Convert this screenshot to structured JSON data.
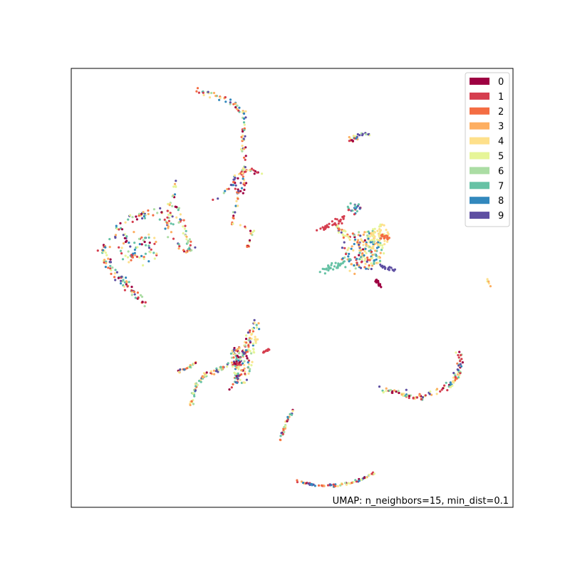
{
  "chart_data": {
    "type": "scatter",
    "title": "",
    "xlabel": "",
    "ylabel": "",
    "grid": false,
    "axes_ticks": false,
    "xlim": [
      0,
      100
    ],
    "ylim": [
      0,
      100
    ],
    "legend": {
      "placement": "top-right",
      "entries": [
        "0",
        "1",
        "2",
        "3",
        "4",
        "5",
        "6",
        "7",
        "8",
        "9"
      ]
    },
    "colors": [
      "#9e0142",
      "#d53e4f",
      "#f46d43",
      "#fdae61",
      "#fee08b",
      "#e6f598",
      "#abdda4",
      "#66c2a5",
      "#3288bd",
      "#5e4fa2"
    ],
    "annotation": "UMAP: n_neighbors=15, min_dist=0.1",
    "clusters": [
      {
        "kind": "path",
        "pts": [
          [
            28,
            95
          ],
          [
            33,
            94
          ],
          [
            37,
            92
          ],
          [
            39,
            90
          ],
          [
            39,
            85
          ],
          [
            39,
            78
          ],
          [
            39,
            72
          ]
        ],
        "n": 90,
        "jitter": 0.6,
        "mix": "all"
      },
      {
        "kind": "path",
        "pts": [
          [
            37,
            75
          ],
          [
            40,
            77
          ],
          [
            43,
            76
          ]
        ],
        "n": 25,
        "jitter": 0.5,
        "mix": "all"
      },
      {
        "kind": "path",
        "pts": [
          [
            32,
            70
          ],
          [
            37,
            74
          ],
          [
            38,
            71
          ],
          [
            36,
            65
          ],
          [
            41,
            63
          ],
          [
            40,
            59
          ]
        ],
        "n": 50,
        "jitter": 0.6,
        "mix": "all"
      },
      {
        "kind": "path",
        "pts": [
          [
            24,
            75
          ],
          [
            22,
            68
          ],
          [
            22,
            62
          ],
          [
            26,
            58
          ],
          [
            27,
            59
          ]
        ],
        "n": 45,
        "jitter": 0.8,
        "mix": "all"
      },
      {
        "kind": "path",
        "pts": [
          [
            7,
            58
          ],
          [
            10,
            53
          ],
          [
            13,
            50
          ],
          [
            16,
            47
          ],
          [
            17,
            46
          ]
        ],
        "n": 70,
        "jitter": 1.0,
        "mix": "all"
      },
      {
        "kind": "path",
        "pts": [
          [
            7,
            58
          ],
          [
            10,
            63
          ],
          [
            14,
            66
          ],
          [
            18,
            67
          ],
          [
            24,
            68
          ],
          [
            26,
            62
          ],
          [
            27,
            59
          ]
        ],
        "n": 90,
        "jitter": 1.0,
        "mix": "all"
      },
      {
        "kind": "blob",
        "c": [
          15,
          59
        ],
        "r": [
          5,
          4
        ],
        "n": 70,
        "mix": "all"
      },
      {
        "kind": "blob",
        "c": [
          64,
          84
        ],
        "r": [
          1.5,
          0.8
        ],
        "n": 18,
        "mix": "all"
      },
      {
        "kind": "path",
        "pts": [
          [
            65,
            85
          ],
          [
            68,
            85
          ]
        ],
        "n": 10,
        "jitter": 0.3,
        "mix": [
          5,
          6,
          9
        ]
      },
      {
        "kind": "path",
        "pts": [
          [
            56,
            63
          ],
          [
            60,
            65
          ],
          [
            62,
            66
          ]
        ],
        "n": 35,
        "jitter": 0.6,
        "mix": [
          1
        ]
      },
      {
        "kind": "path",
        "pts": [
          [
            60,
            64
          ],
          [
            65,
            60
          ],
          [
            68,
            54
          ]
        ],
        "n": 40,
        "jitter": 0.8,
        "mix": [
          4,
          5,
          9,
          2
        ]
      },
      {
        "kind": "path",
        "pts": [
          [
            57,
            54
          ],
          [
            60,
            55
          ],
          [
            62,
            56
          ]
        ],
        "n": 35,
        "jitter": 0.8,
        "mix": [
          7
        ]
      },
      {
        "kind": "blob",
        "c": [
          68,
          59
        ],
        "r": [
          3,
          4
        ],
        "n": 90,
        "mix": [
          8,
          4,
          5,
          3,
          7
        ]
      },
      {
        "kind": "blob",
        "c": [
          70,
          62
        ],
        "r": [
          2,
          2.5
        ],
        "n": 40,
        "mix": [
          5,
          4
        ]
      },
      {
        "kind": "path",
        "pts": [
          [
            70,
            62
          ],
          [
            72,
            61
          ]
        ],
        "n": 20,
        "jitter": 0.5,
        "mix": [
          2
        ]
      },
      {
        "kind": "path",
        "pts": [
          [
            70,
            55
          ],
          [
            73,
            54
          ]
        ],
        "n": 18,
        "jitter": 0.4,
        "mix": [
          9
        ]
      },
      {
        "kind": "path",
        "pts": [
          [
            69,
            52
          ],
          [
            70,
            50
          ]
        ],
        "n": 14,
        "jitter": 0.4,
        "mix": [
          0
        ]
      },
      {
        "kind": "blob",
        "c": [
          64,
          68
        ],
        "r": [
          1.5,
          1.5
        ],
        "n": 22,
        "mix": [
          7,
          8,
          9,
          1
        ]
      },
      {
        "kind": "blob",
        "c": [
          65,
          58
        ],
        "r": [
          4,
          5
        ],
        "n": 80,
        "mix": "all"
      },
      {
        "kind": "path",
        "pts": [
          [
            94,
            52
          ],
          [
            95,
            50
          ]
        ],
        "n": 5,
        "jitter": 0.2,
        "mix": "all"
      },
      {
        "kind": "path",
        "pts": [
          [
            30,
            30
          ],
          [
            33,
            31
          ],
          [
            35,
            32
          ],
          [
            37,
            33
          ],
          [
            37,
            36
          ]
        ],
        "n": 55,
        "jitter": 0.8,
        "mix": "all"
      },
      {
        "kind": "path",
        "pts": [
          [
            24,
            31
          ],
          [
            27,
            32
          ],
          [
            28,
            33
          ]
        ],
        "n": 25,
        "jitter": 0.5,
        "mix": "all"
      },
      {
        "kind": "path",
        "pts": [
          [
            30,
            30
          ],
          [
            28,
            27
          ],
          [
            27,
            23
          ]
        ],
        "n": 30,
        "jitter": 0.5,
        "mix": "all"
      },
      {
        "kind": "path",
        "pts": [
          [
            37,
            27
          ],
          [
            38,
            33
          ],
          [
            40,
            36
          ],
          [
            40,
            39
          ],
          [
            42,
            42
          ]
        ],
        "n": 80,
        "jitter": 1.2,
        "mix": "all"
      },
      {
        "kind": "blob",
        "c": [
          39,
          33
        ],
        "r": [
          2,
          5
        ],
        "n": 60,
        "mix": "all"
      },
      {
        "kind": "path",
        "pts": [
          [
            41,
            35
          ],
          [
            42,
            39
          ]
        ],
        "n": 12,
        "jitter": 0.4,
        "mix": [
          5,
          4
        ]
      },
      {
        "kind": "path",
        "pts": [
          [
            43,
            35
          ],
          [
            45,
            36
          ]
        ],
        "n": 10,
        "jitter": 0.3,
        "mix": [
          1
        ]
      },
      {
        "kind": "path",
        "pts": [
          [
            70,
            27
          ],
          [
            74,
            26
          ],
          [
            78,
            25
          ],
          [
            82,
            26
          ],
          [
            86,
            28
          ],
          [
            88,
            31
          ],
          [
            88,
            35
          ]
        ],
        "n": 120,
        "jitter": 0.8,
        "mix": "all"
      },
      {
        "kind": "path",
        "pts": [
          [
            47,
            15
          ],
          [
            48,
            17
          ],
          [
            49,
            20
          ],
          [
            50,
            22
          ]
        ],
        "n": 35,
        "jitter": 0.4,
        "mix": "all"
      },
      {
        "kind": "path",
        "pts": [
          [
            51,
            6
          ],
          [
            55,
            5
          ],
          [
            60,
            5
          ],
          [
            65,
            6
          ],
          [
            69,
            8
          ]
        ],
        "n": 70,
        "jitter": 0.3,
        "mix": "all"
      }
    ]
  },
  "ui": {
    "legend_labels": [
      "0",
      "1",
      "2",
      "3",
      "4",
      "5",
      "6",
      "7",
      "8",
      "9"
    ],
    "annotation": "UMAP: n_neighbors=15, min_dist=0.1"
  }
}
